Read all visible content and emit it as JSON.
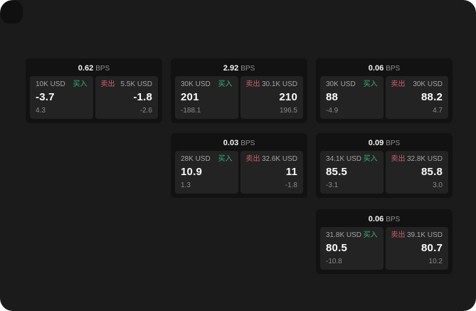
{
  "page": {
    "background": "#ffffff",
    "app_background": "#1b1b1b"
  },
  "labels": {
    "buy": "买入",
    "sell": "卖出",
    "bps_unit": "BPS"
  },
  "colors": {
    "buy_green": "#33b377",
    "sell_red": "#cf5d6e",
    "card_background": "#121212",
    "panel_background": "#232323",
    "primary_text": "#fafafa",
    "muted_text": "#8f8f8f"
  },
  "cards": [
    {
      "bps": "0.62",
      "buy": {
        "amount": "10K USD",
        "price": "-3.7",
        "sub": "4.3"
      },
      "sell": {
        "amount": "5.5K USD",
        "price": "-1.8",
        "sub": "-2.6"
      }
    },
    {
      "bps": "2.92",
      "buy": {
        "amount": "30K USD",
        "price": "201",
        "sub": "-188.1"
      },
      "sell": {
        "amount": "30.1K USD",
        "price": "210",
        "sub": "196.5"
      }
    },
    {
      "bps": "0.06",
      "buy": {
        "amount": "30K USD",
        "price": "88",
        "sub": "-4.9"
      },
      "sell": {
        "amount": "30K USD",
        "price": "88.2",
        "sub": "4.7"
      }
    },
    {
      "bps": "0.03",
      "buy": {
        "amount": "28K USD",
        "price": "10.9",
        "sub": "1.3"
      },
      "sell": {
        "amount": "32.6K USD",
        "price": "11",
        "sub": "-1.8"
      }
    },
    {
      "bps": "0.09",
      "buy": {
        "amount": "34.1K USD",
        "price": "85.5",
        "sub": "-3.1"
      },
      "sell": {
        "amount": "32.8K USD",
        "price": "85.8",
        "sub": "3.0"
      }
    },
    {
      "bps": "0.06",
      "buy": {
        "amount": "31.8K USD",
        "price": "80.5",
        "sub": "-10.8"
      },
      "sell": {
        "amount": "39.1K USD",
        "price": "80.7",
        "sub": "10.2"
      }
    }
  ]
}
